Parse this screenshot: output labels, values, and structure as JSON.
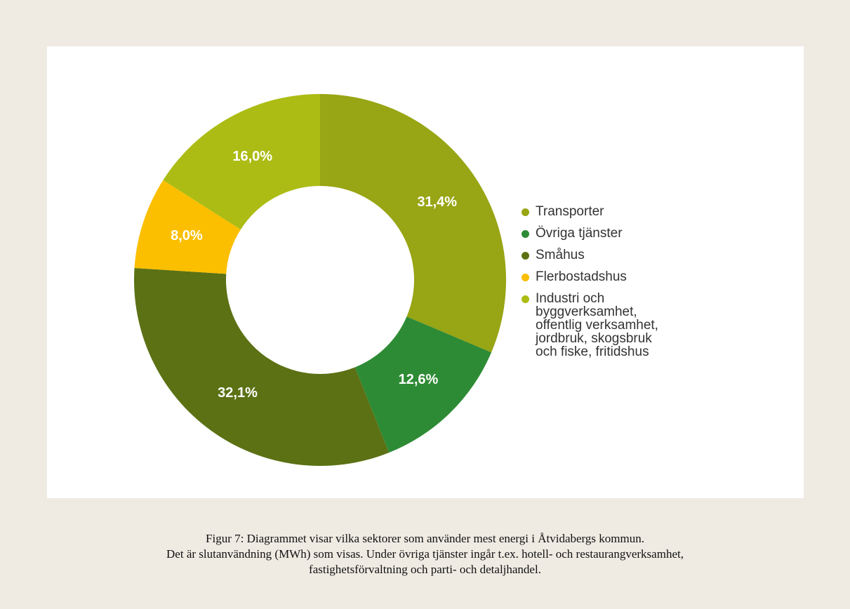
{
  "chart_data": {
    "type": "donut",
    "categories": [
      "Transporter",
      "Övriga tjänster",
      "Småhus",
      "Flerbostadshus",
      "Industri och\nbyggverksamhet,\noffentlig verksamhet,\njordbruk, skogsbruk\noch fiske, fritidshus"
    ],
    "values": [
      31.4,
      12.6,
      32.1,
      8.0,
      16.0
    ],
    "value_labels": [
      "31,4%",
      "12,6%",
      "32,1%",
      "8,0%",
      "16,0%"
    ],
    "colors": [
      "#98a514",
      "#2e8b35",
      "#5b7114",
      "#fbbf00",
      "#acbc14"
    ],
    "legend": "right"
  },
  "caption": [
    "Figur 7: Diagrammet visar vilka sektorer som använder mest energi i Åtvidabergs kommun.",
    "Det är slutanvändning (MWh) som visas. Under övriga tjänster ingår t.ex. hotell- och restaurangverksamhet,",
    "fastighetsförvaltning och parti- och detaljhandel."
  ]
}
